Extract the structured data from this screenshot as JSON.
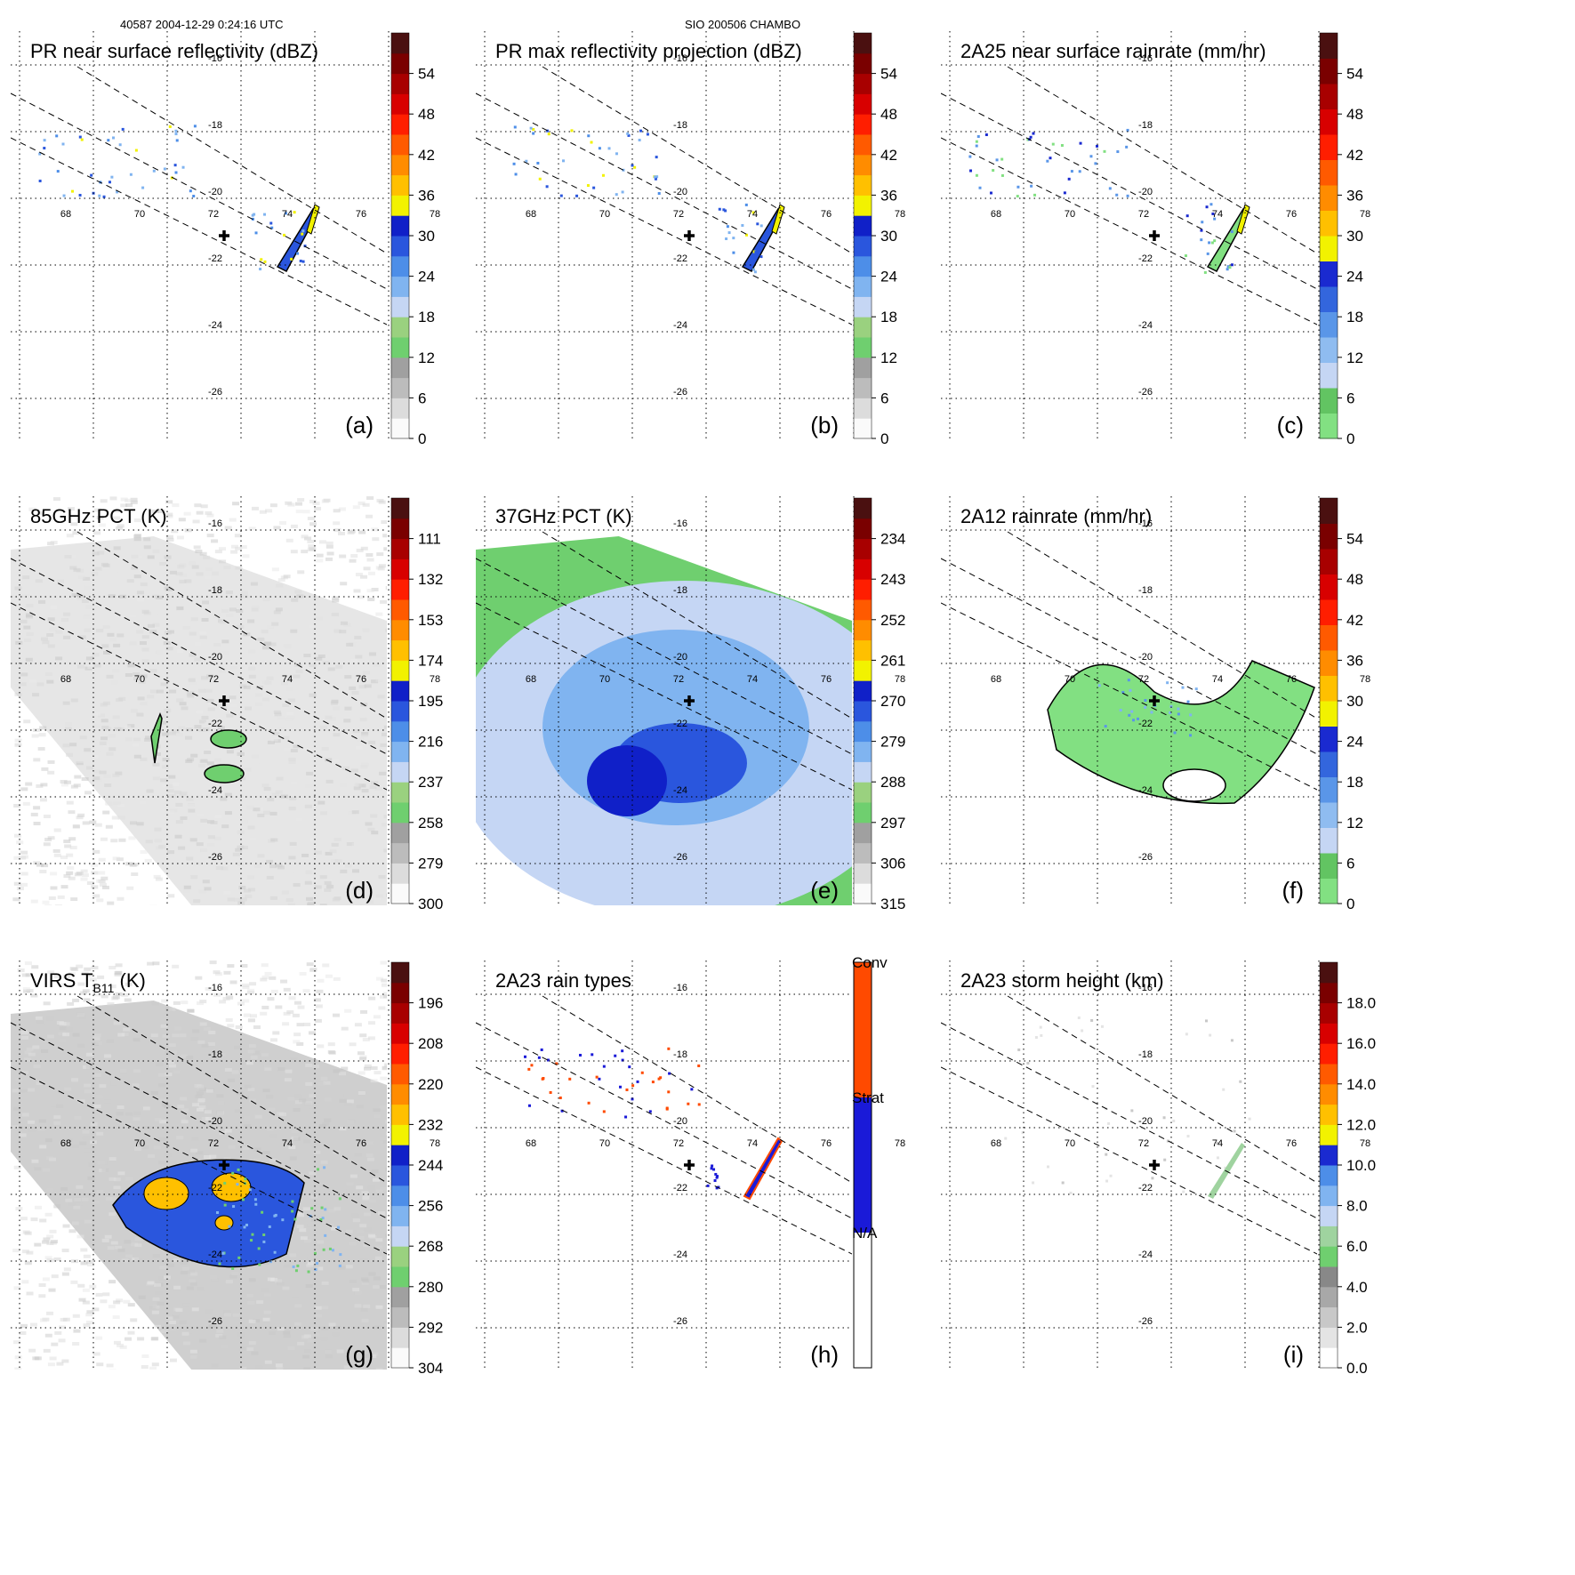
{
  "header": {
    "left": "40587 2004-12-29 0:24:16 UTC",
    "center": "SIO 200506 CHAMBO"
  },
  "colors": {
    "grid": "#000000",
    "swath": "#000000",
    "cross": "#000000"
  },
  "chart_data": [
    {
      "id": "a",
      "type": "heatmap",
      "title": "PR near surface reflectivity (dBZ)",
      "panel_label": "(a)",
      "lon_ticks": [
        "68",
        "70",
        "72",
        "74",
        "76",
        "78"
      ],
      "lat_ticks": [
        "-16",
        "-18",
        "-20",
        "-22",
        "-24",
        "-26"
      ],
      "colorbar": {
        "ticks": [
          "0",
          "6",
          "12",
          "18",
          "24",
          "30",
          "36",
          "42",
          "48",
          "54"
        ],
        "palette": "dbz"
      },
      "swath": true,
      "background": "none",
      "features": "pr"
    },
    {
      "id": "b",
      "type": "heatmap",
      "title": "PR max reflectivity projection (dBZ)",
      "panel_label": "(b)",
      "lon_ticks": [
        "68",
        "70",
        "72",
        "74",
        "76",
        "78"
      ],
      "lat_ticks": [
        "-16",
        "-18",
        "-20",
        "-22",
        "-24",
        "-26"
      ],
      "colorbar": {
        "ticks": [
          "0",
          "6",
          "12",
          "18",
          "24",
          "30",
          "36",
          "42",
          "48",
          "54"
        ],
        "palette": "dbz"
      },
      "swath": true,
      "background": "none",
      "features": "pr"
    },
    {
      "id": "c",
      "type": "heatmap",
      "title": "2A25 near surface rainrate (mm/hr)",
      "panel_label": "(c)",
      "lon_ticks": [
        "68",
        "70",
        "72",
        "74",
        "76",
        "78"
      ],
      "lat_ticks": [
        "-16",
        "-18",
        "-20",
        "-22",
        "-24",
        "-26"
      ],
      "colorbar": {
        "ticks": [
          "0",
          "6",
          "12",
          "18",
          "24",
          "30",
          "36",
          "42",
          "48",
          "54"
        ],
        "palette": "rain"
      },
      "swath": true,
      "background": "none",
      "features": "pr"
    },
    {
      "id": "d",
      "type": "heatmap",
      "title": "85GHz PCT (K)",
      "panel_label": "(d)",
      "lon_ticks": [
        "68",
        "70",
        "72",
        "74",
        "76",
        "78"
      ],
      "lat_ticks": [
        "-16",
        "-18",
        "-20",
        "-22",
        "-24",
        "-26"
      ],
      "colorbar": {
        "ticks": [
          "300",
          "279",
          "258",
          "237",
          "216",
          "195",
          "174",
          "153",
          "132",
          "111"
        ],
        "palette": "dbz"
      },
      "swath": true,
      "background": "gray",
      "features": "pct85"
    },
    {
      "id": "e",
      "type": "heatmap",
      "title": "37GHz PCT (K)",
      "panel_label": "(e)",
      "lon_ticks": [
        "68",
        "70",
        "72",
        "74",
        "76",
        "78"
      ],
      "lat_ticks": [
        "-16",
        "-18",
        "-20",
        "-22",
        "-24",
        "-26"
      ],
      "colorbar": {
        "ticks": [
          "315",
          "306",
          "297",
          "288",
          "279",
          "270",
          "261",
          "252",
          "243",
          "234"
        ],
        "palette": "dbz"
      },
      "swath": true,
      "background": "green",
      "features": "pct37"
    },
    {
      "id": "f",
      "type": "heatmap",
      "title": "2A12 rainrate (mm/hr)",
      "panel_label": "(f)",
      "lon_ticks": [
        "68",
        "70",
        "72",
        "74",
        "76",
        "78"
      ],
      "lat_ticks": [
        "-16",
        "-18",
        "-20",
        "-22",
        "-24",
        "-26"
      ],
      "colorbar": {
        "ticks": [
          "0",
          "6",
          "12",
          "18",
          "24",
          "30",
          "36",
          "42",
          "48",
          "54"
        ],
        "palette": "rain"
      },
      "swath": true,
      "background": "none",
      "features": "tmi_rain"
    },
    {
      "id": "g",
      "type": "heatmap",
      "title": "VIRS T",
      "title_sub": "B11",
      "title_tail": " (K)",
      "panel_label": "(g)",
      "lon_ticks": [
        "68",
        "70",
        "72",
        "74",
        "76",
        "78"
      ],
      "lat_ticks": [
        "-16",
        "-18",
        "-20",
        "-22",
        "-24",
        "-26"
      ],
      "colorbar": {
        "ticks": [
          "304",
          "292",
          "280",
          "268",
          "256",
          "244",
          "232",
          "220",
          "208",
          "196"
        ],
        "palette": "dbz"
      },
      "swath": true,
      "background": "gray",
      "features": "virs"
    },
    {
      "id": "h",
      "type": "heatmap",
      "title": "2A23 rain types",
      "panel_label": "(h)",
      "lon_ticks": [
        "68",
        "70",
        "72",
        "74",
        "76",
        "78"
      ],
      "lat_ticks": [
        "-16",
        "-18",
        "-20",
        "-22",
        "-24",
        "-26"
      ],
      "colorbar": {
        "ticks": [
          "N/A",
          "Strat",
          "Conv"
        ],
        "palette": "raintype"
      },
      "swath": true,
      "background": "none",
      "features": "raintype"
    },
    {
      "id": "i",
      "type": "heatmap",
      "title": "2A23 storm height (km)",
      "panel_label": "(i)",
      "lon_ticks": [
        "68",
        "70",
        "72",
        "74",
        "76",
        "78"
      ],
      "lat_ticks": [
        "-16",
        "-18",
        "-20",
        "-22",
        "-24",
        "-26"
      ],
      "colorbar": {
        "ticks": [
          "0.0",
          "2.0",
          "4.0",
          "6.0",
          "8.0",
          "10.0",
          "12.0",
          "14.0",
          "16.0",
          "18.0"
        ],
        "palette": "height"
      },
      "swath": true,
      "background": "none",
      "features": "height"
    }
  ]
}
